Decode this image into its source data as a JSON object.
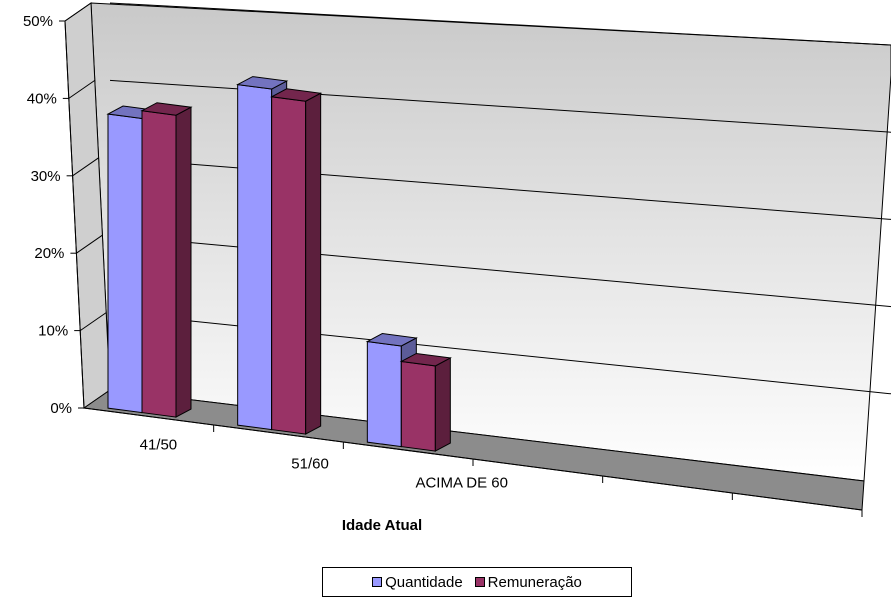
{
  "chart_data": {
    "type": "bar",
    "xlabel": "Idade Atual",
    "ylabel": "",
    "categories": [
      "41/50",
      "51/60",
      "ACIMA DE 60"
    ],
    "series": [
      {
        "name": "Quantidade",
        "values": [
          38,
          44,
          13
        ],
        "color": "#9999ff"
      },
      {
        "name": "Remuneração",
        "values": [
          39,
          43,
          11
        ],
        "color": "#993366"
      }
    ],
    "yticks": [
      "0%",
      "10%",
      "20%",
      "30%",
      "40%",
      "50%"
    ],
    "ylim": [
      0,
      50
    ],
    "grid": true,
    "legend": "bottom",
    "style": "3d-clustered"
  }
}
